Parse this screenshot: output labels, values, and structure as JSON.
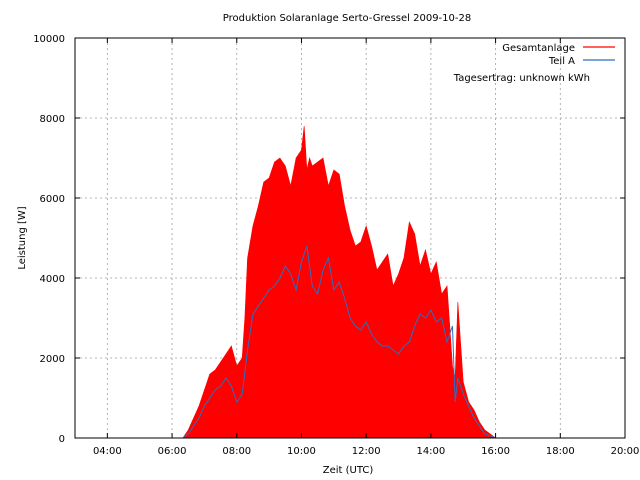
{
  "chart_data": {
    "type": "area",
    "title": "Produktion Solaranlage Serto-Gressel 2009-10-28",
    "xlabel": "Zeit (UTC)",
    "ylabel": "Leistung [W]",
    "xlim": [
      "03:00",
      "20:00"
    ],
    "ylim": [
      0,
      10000
    ],
    "x_ticks": [
      "04:00",
      "06:00",
      "08:00",
      "10:00",
      "12:00",
      "14:00",
      "16:00",
      "18:00",
      "20:00"
    ],
    "y_ticks": [
      "0",
      "2000",
      "4000",
      "6000",
      "8000",
      "10000"
    ],
    "grid": true,
    "legend_position": "top-right",
    "annotation": "Tagesertrag: unknown kWh",
    "series": [
      {
        "name": "Gesamtanlage",
        "style": "filled-area",
        "color": "#ff0000",
        "x": [
          "06:20",
          "06:30",
          "06:40",
          "06:50",
          "07:00",
          "07:10",
          "07:20",
          "07:30",
          "07:40",
          "07:50",
          "08:00",
          "08:10",
          "08:15",
          "08:20",
          "08:30",
          "08:40",
          "08:50",
          "09:00",
          "09:10",
          "09:20",
          "09:30",
          "09:40",
          "09:50",
          "10:00",
          "10:05",
          "10:10",
          "10:15",
          "10:20",
          "10:30",
          "10:40",
          "10:50",
          "11:00",
          "11:10",
          "11:20",
          "11:30",
          "11:40",
          "11:50",
          "12:00",
          "12:10",
          "12:20",
          "12:30",
          "12:40",
          "12:50",
          "13:00",
          "13:10",
          "13:20",
          "13:30",
          "13:40",
          "13:50",
          "14:00",
          "14:10",
          "14:20",
          "14:30",
          "14:40",
          "14:45",
          "14:50",
          "15:00",
          "15:10",
          "15:20",
          "15:30",
          "15:40",
          "15:50",
          "16:00",
          "16:10"
        ],
        "values": [
          0,
          200,
          500,
          800,
          1200,
          1600,
          1700,
          1900,
          2100,
          2300,
          1800,
          2000,
          3000,
          4500,
          5300,
          5800,
          6400,
          6500,
          6900,
          7000,
          6800,
          6300,
          7000,
          7200,
          7800,
          6700,
          7000,
          6800,
          6900,
          7000,
          6300,
          6700,
          6600,
          5800,
          5200,
          4800,
          4900,
          5300,
          4800,
          4200,
          4400,
          4600,
          3800,
          4100,
          4500,
          5400,
          5100,
          4300,
          4700,
          4100,
          4400,
          3600,
          3800,
          1800,
          1500,
          3400,
          1400,
          900,
          700,
          400,
          200,
          100,
          0,
          0
        ]
      },
      {
        "name": "Teil A",
        "style": "line",
        "color": "#2a6fc2",
        "x": [
          "06:20",
          "06:30",
          "06:40",
          "06:50",
          "07:00",
          "07:10",
          "07:20",
          "07:30",
          "07:40",
          "07:50",
          "08:00",
          "08:10",
          "08:20",
          "08:30",
          "08:40",
          "08:50",
          "09:00",
          "09:10",
          "09:20",
          "09:30",
          "09:40",
          "09:50",
          "10:00",
          "10:10",
          "10:20",
          "10:30",
          "10:40",
          "10:50",
          "11:00",
          "11:10",
          "11:20",
          "11:30",
          "11:40",
          "11:50",
          "12:00",
          "12:10",
          "12:20",
          "12:30",
          "12:40",
          "12:50",
          "13:00",
          "13:10",
          "13:20",
          "13:30",
          "13:40",
          "13:50",
          "14:00",
          "14:10",
          "14:20",
          "14:30",
          "14:40",
          "14:45",
          "14:50",
          "15:00",
          "15:10",
          "15:20",
          "15:30",
          "15:40",
          "15:50",
          "16:00",
          "16:10"
        ],
        "values": [
          0,
          100,
          300,
          500,
          800,
          1000,
          1200,
          1300,
          1500,
          1300,
          900,
          1100,
          2200,
          3100,
          3300,
          3500,
          3700,
          3800,
          4000,
          4300,
          4100,
          3700,
          4400,
          4800,
          3800,
          3600,
          4200,
          4500,
          3700,
          3900,
          3500,
          3000,
          2800,
          2700,
          2900,
          2600,
          2400,
          2300,
          2300,
          2200,
          2100,
          2300,
          2400,
          2800,
          3100,
          3000,
          3200,
          2900,
          3000,
          2400,
          2800,
          900,
          1500,
          1100,
          800,
          500,
          300,
          100,
          50,
          0,
          0
        ]
      }
    ]
  }
}
